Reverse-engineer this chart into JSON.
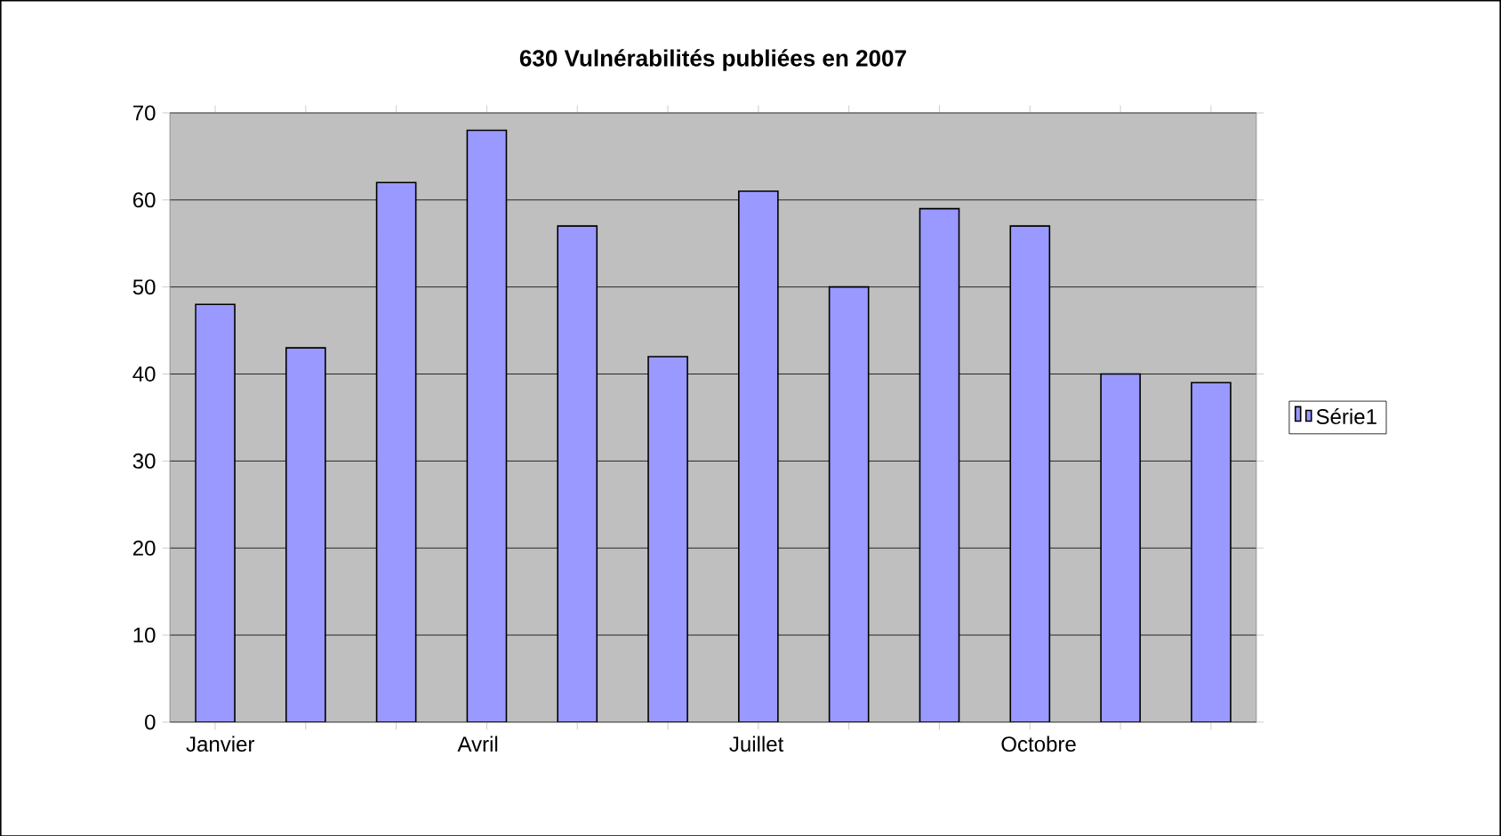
{
  "chart_data": {
    "type": "bar",
    "title": "630 Vulnérabilités publiées en 2007",
    "categories": [
      "Janvier",
      null,
      null,
      "Avril",
      null,
      null,
      "Juillet",
      null,
      null,
      "Octobre",
      null,
      null
    ],
    "series": [
      {
        "name": "Série1",
        "color": "#9999ff",
        "values": [
          48,
          43,
          62,
          68,
          57,
          42,
          61,
          50,
          59,
          57,
          40,
          39
        ]
      }
    ],
    "ylim": [
      0,
      70
    ],
    "yticks": [
      0,
      10,
      20,
      30,
      40,
      50,
      60,
      70
    ],
    "grid": "y",
    "legend": "right"
  }
}
